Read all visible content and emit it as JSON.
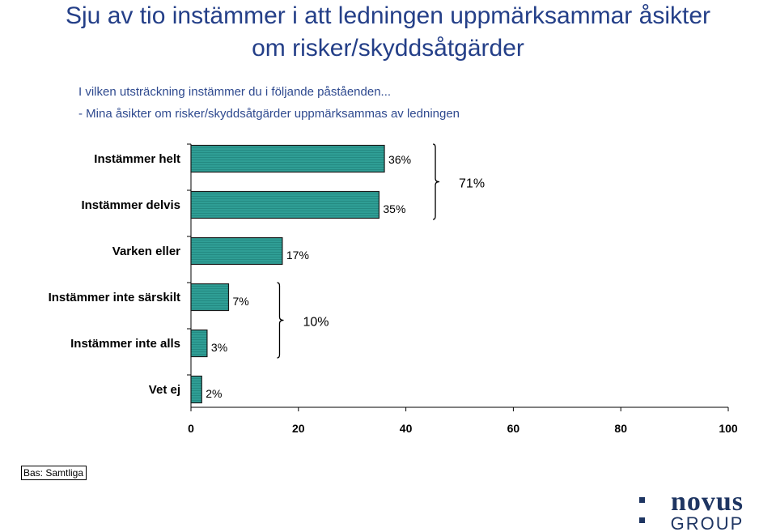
{
  "title": {
    "line1": "Sju av tio instämmer i att ledningen uppmärksammar åsikter",
    "line2": "om risker/skyddsåtgärder"
  },
  "question": {
    "line1": "I vilken utsträckning instämmer du i följande påståenden...",
    "line2": "- Mina åsikter om risker/skyddsåtgärder uppmärksammas av ledningen"
  },
  "chart_data": {
    "type": "bar",
    "orientation": "horizontal",
    "categories": [
      "Instämmer helt",
      "Instämmer delvis",
      "Varken eller",
      "Instämmer inte särskilt",
      "Instämmer inte alls",
      "Vet ej"
    ],
    "values": [
      36,
      35,
      17,
      7,
      3,
      2
    ],
    "value_labels": [
      "36%",
      "35%",
      "17%",
      "7%",
      "3%",
      "2%"
    ],
    "xlim": [
      0,
      100
    ],
    "xticks": [
      0,
      20,
      40,
      60,
      80,
      100
    ],
    "bar_color": "#2f9e95",
    "grid": false,
    "legend": "none",
    "annotations": [
      {
        "label": "71%",
        "groups": [
          "Instämmer helt",
          "Instämmer delvis"
        ]
      },
      {
        "label": "10%",
        "groups": [
          "Instämmer inte särskilt",
          "Instämmer inte alls"
        ]
      }
    ]
  },
  "footer": {
    "base": "Bas: Samtliga"
  },
  "logo": {
    "line1": "novus",
    "line2": "GROUP",
    "color": "#1e3562"
  }
}
